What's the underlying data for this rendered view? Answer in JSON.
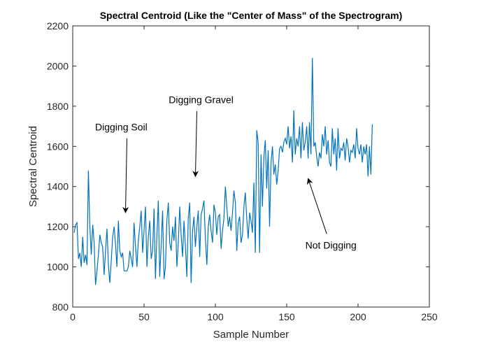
{
  "chart_data": {
    "type": "line",
    "title": "Spectral Centroid (Like the \"Center of Mass\" of the Spectrogram)",
    "xlabel": "Sample Number",
    "ylabel": "Spectral Centroid",
    "xlim": [
      0,
      250
    ],
    "ylim": [
      800,
      2200
    ],
    "xticks": [
      0,
      50,
      100,
      150,
      200,
      250
    ],
    "yticks": [
      800,
      1000,
      1200,
      1400,
      1600,
      1800,
      2000,
      2200
    ],
    "grid": false,
    "line_color": "#0072BD",
    "series": [
      {
        "name": "Spectral Centroid",
        "x_start": 1,
        "values": [
          1170,
          1210,
          1220,
          1040,
          1070,
          1000,
          1150,
          1020,
          1060,
          1010,
          1480,
          1200,
          1060,
          1210,
          1120,
          910,
          980,
          1060,
          1160,
          1120,
          1100,
          960,
          1080,
          1190,
          1010,
          920,
          1030,
          1150,
          1200,
          1110,
          1000,
          1230,
          1080,
          1050,
          1070,
          980,
          980,
          980,
          1000,
          1080,
          1040,
          1000,
          1220,
          1100,
          1000,
          1130,
          1200,
          1280,
          1070,
          1180,
          1300,
          1000,
          1150,
          1230,
          1040,
          1080,
          1290,
          940,
          1160,
          1330,
          950,
          1110,
          1280,
          940,
          1000,
          1230,
          1320,
          1120,
          1080,
          1200,
          1130,
          1250,
          1000,
          1120,
          1300,
          1160,
          1050,
          1230,
          1100,
          950,
          1240,
          1320,
          920,
          1180,
          1250,
          1100,
          1200,
          1280,
          1050,
          1260,
          1290,
          1330,
          1140,
          1010,
          1200,
          1260,
          1180,
          1120,
          1310,
          1270,
          1160,
          1250,
          1260,
          1090,
          1180,
          1240,
          1400,
          1300,
          1200,
          1250,
          1180,
          1270,
          1380,
          1320,
          1080,
          1220,
          1250,
          1120,
          1160,
          1300,
          1370,
          1240,
          1140,
          1270,
          1230,
          1170,
          1420,
          1070,
          1680,
          1620,
          1070,
          1560,
          1300,
          1550,
          1630,
          1390,
          1580,
          1200,
          1520,
          1600,
          1460,
          1510,
          1410,
          1480,
          1590,
          1600,
          1570,
          1620,
          1640,
          1610,
          1700,
          1590,
          1650,
          1520,
          1780,
          1560,
          1640,
          1600,
          1700,
          1540,
          1720,
          1580,
          1620,
          1700,
          1540,
          1720,
          1560,
          2040,
          1600,
          1620,
          1550,
          1500,
          1570,
          1540,
          1660,
          1600,
          1700,
          1560,
          1630,
          1520,
          1500,
          1690,
          1560,
          1640,
          1480,
          1690,
          1540,
          1590,
          1580,
          1620,
          1530,
          1640,
          1600,
          1520,
          1580,
          1570,
          1610,
          1540,
          1690,
          1590,
          1560,
          1610,
          1520,
          1600,
          1560,
          1610,
          1450,
          1600,
          1460,
          1710
        ]
      }
    ],
    "annotations": [
      {
        "text": "Digging Soil",
        "text_at": [
          34,
          1680
        ],
        "arrow_from": [
          38,
          1640
        ],
        "arrow_to": [
          37,
          1270
        ]
      },
      {
        "text": "Digging Gravel",
        "text_at": [
          90,
          1815
        ],
        "arrow_from": [
          87,
          1775
        ],
        "arrow_to": [
          86,
          1450
        ]
      },
      {
        "text": "Not Digging",
        "text_at": [
          181,
          1090
        ],
        "arrow_from": [
          178,
          1165
        ],
        "arrow_to": [
          165,
          1440
        ]
      }
    ]
  }
}
